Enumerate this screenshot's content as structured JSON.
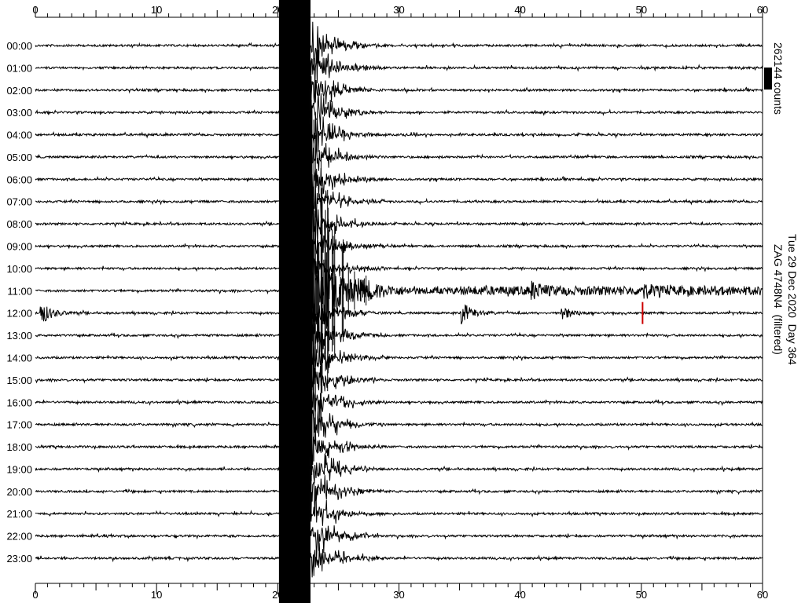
{
  "chart_data": {
    "type": "line",
    "subtype": "helicorder seismogram",
    "title": "Tue 29 Dec 2020  Day 364",
    "subtitle": "ZAG 4748N4  (filtered)",
    "scale_label": "262144 counts",
    "xlim": [
      0,
      60
    ],
    "x_ticks": [
      "0",
      "10",
      "20",
      "30",
      "40",
      "50",
      "60"
    ],
    "row_labels": [
      "00:00",
      "01:00",
      "02:00",
      "03:00",
      "04:00",
      "05:00",
      "06:00",
      "07:00",
      "08:00",
      "09:00",
      "10:00",
      "11:00",
      "12:00",
      "13:00",
      "14:00",
      "15:00",
      "16:00",
      "17:00",
      "18:00",
      "19:00",
      "20:00",
      "21:00",
      "22:00",
      "23:00"
    ],
    "main_event": {
      "row": "11:00",
      "onset_minute": 20.1,
      "saturated_until_minute": 22.7
    },
    "aftershocks": [
      {
        "row": "11:00",
        "minute": 41
      },
      {
        "row": "11:00",
        "minute": 50
      },
      {
        "row": "12:00",
        "minute": 0.5
      },
      {
        "row": "12:00",
        "minute": 35.2
      },
      {
        "row": "12:00",
        "minute": 43.5
      }
    ],
    "marker": {
      "row": "12:00",
      "minute": 50.1,
      "color": "#cc0000"
    },
    "grid": false,
    "trace_color": "#000000"
  }
}
